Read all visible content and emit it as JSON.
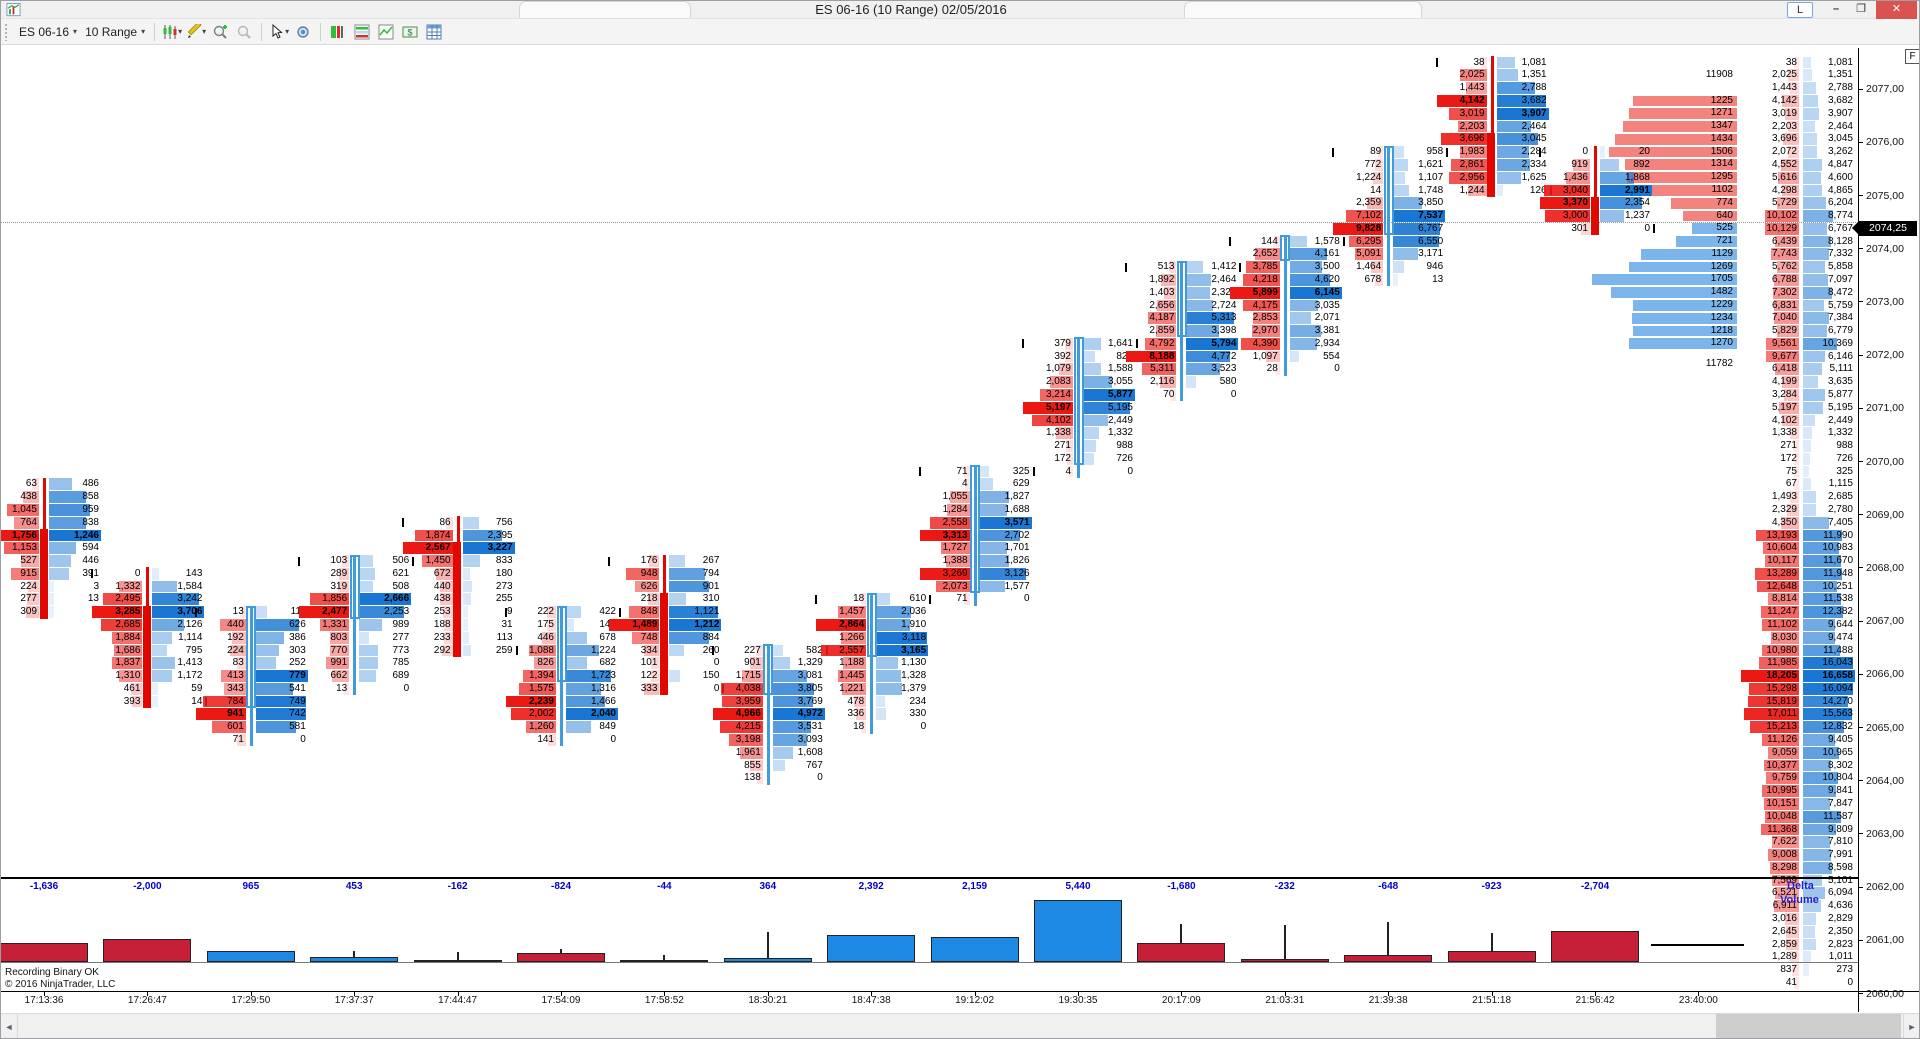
{
  "window": {
    "title": "ES 06-16 (10 Range)  02/05/2016",
    "link_button": "L",
    "minimize": "–",
    "restore": "❐",
    "close": "✕",
    "f_button": "F",
    "status_line1": "Recording Binary OK",
    "status_line2": "© 2016 NinjaTrader, LLC"
  },
  "toolbar": {
    "instrument": "ES 06-16",
    "period": "10 Range",
    "caret": "▾",
    "icons": [
      "chart-style",
      "drawing-tools",
      "zoom-in",
      "zoom-out",
      "cursor",
      "data-box",
      "chart-trader",
      "market-analyzer",
      "mini-chart",
      "account-dollar",
      "data-grid"
    ]
  },
  "scrollbar": {
    "left_arrow": "◄",
    "right_arrow": "►"
  },
  "colors": {
    "bid_heat": "235,25,20",
    "ask_heat": "25,118,210",
    "candle_up": "#3e9bdc",
    "candle_down": "#e00800",
    "vp_sell": "#f2837f",
    "vp_buy": "#7cb5ec",
    "vol_up": "#1e88e5",
    "vol_down": "#c62039",
    "delta_text": "#0000cc",
    "badge_bg": "#000000",
    "badge_text": "#ffffff"
  },
  "chart_data": {
    "type": "footprint",
    "title": "ES 06-16 (10 Range) 02/05/2016",
    "price_axis": {
      "labels": [
        "2077,00",
        "2076,00",
        "2075,00",
        "2074,00",
        "2073,00",
        "2072,00",
        "2071,00",
        "2070,00",
        "2069,00",
        "2068,00",
        "2067,00",
        "2066,00",
        "2065,00",
        "2064,00",
        "2063,00",
        "2062,00",
        "2061,00",
        "2060,00"
      ],
      "last_price": "2074,25",
      "tick_size": 0.25,
      "top_row_price": 2077.5
    },
    "time_axis": [
      "17:13:36",
      "17:26:47",
      "17:29:50",
      "17:37:37",
      "17:44:47",
      "17:54:09",
      "17:58:52",
      "18:30:21",
      "18:47:38",
      "19:12:02",
      "19:30:35",
      "20:17:09",
      "21:03:31",
      "21:39:38",
      "21:51:18",
      "21:56:42",
      "23:40:00"
    ],
    "panel_labels": {
      "delta": "Delta",
      "volume": "Volume"
    },
    "bars": [
      {
        "time": "17:13:36",
        "direction": "down",
        "start_tick": 33,
        "body": [
          4,
          10
        ],
        "delta": "-1,636",
        "volume": 13306,
        "bid": [
          "63",
          "438",
          "1,045",
          "764",
          "1,756",
          "1,153",
          "527",
          "915",
          "224",
          "277",
          "309"
        ],
        "ask": [
          "486",
          "858",
          "959",
          "838",
          "1,246",
          "594",
          "446",
          "391",
          "3",
          "13",
          "1"
        ]
      },
      {
        "time": "17:26:47",
        "direction": "down",
        "start_tick": 40,
        "body": [
          3,
          10
        ],
        "delta": "-2,000",
        "volume": 32736,
        "bid": [
          "0",
          "1,332",
          "2,495",
          "3,285",
          "2,685",
          "1,884",
          "1,686",
          "1,837",
          "1,310",
          "461",
          "393"
        ],
        "ask": [
          "143",
          "1,584",
          "3,242",
          "3,706",
          "2,126",
          "1,114",
          "795",
          "1,413",
          "1,172",
          "59",
          "14"
        ]
      },
      {
        "time": "17:29:50",
        "direction": "up",
        "start_tick": 43,
        "body": [
          0,
          7
        ],
        "delta": "965",
        "volume": 9175,
        "bid": [
          "13",
          "440",
          "192",
          "224",
          "83",
          "413",
          "343",
          "784",
          "941",
          "601",
          "71"
        ],
        "ask": [
          "111",
          "626",
          "386",
          "303",
          "252",
          "779",
          "541",
          "749",
          "742",
          "581",
          "0"
        ]
      },
      {
        "time": "17:37:37",
        "direction": "up",
        "start_tick": 39,
        "body": [
          0,
          4
        ],
        "delta": "453",
        "volume": 19681,
        "bid": [
          "103",
          "289",
          "319",
          "1,856",
          "2,477",
          "1,331",
          "803",
          "770",
          "991",
          "662",
          "13"
        ],
        "ask": [
          "506",
          "621",
          "508",
          "2,666",
          "2,253",
          "989",
          "277",
          "773",
          "785",
          "689",
          "0"
        ]
      },
      {
        "time": "17:44:47",
        "direction": "down",
        "start_tick": 36,
        "body": [
          2,
          10
        ],
        "delta": "-162",
        "volume": 16824,
        "bid": [
          "86",
          "1,874",
          "2,567",
          "1,450",
          "672",
          "440",
          "438",
          "253",
          "188",
          "233",
          "292"
        ],
        "ask": [
          "756",
          "2,395",
          "3,227",
          "833",
          "180",
          "273",
          "255",
          "9",
          "31",
          "113",
          "259"
        ]
      },
      {
        "time": "17:54:09",
        "direction": "up",
        "start_tick": 43,
        "body": [
          0,
          5
        ],
        "delta": "-824",
        "volume": 21912,
        "bid": [
          "222",
          "175",
          "446",
          "1,088",
          "826",
          "1,394",
          "1,575",
          "2,239",
          "2,002",
          "1,260",
          "141"
        ],
        "ask": [
          "422",
          "144",
          "678",
          "1,224",
          "682",
          "1,723",
          "1,316",
          "1,466",
          "2,040",
          "849",
          "0"
        ]
      },
      {
        "time": "17:58:52",
        "direction": "down",
        "start_tick": 39,
        "body": [
          3,
          10
        ],
        "delta": "-44",
        "volume": 11842,
        "bid": [
          "176",
          "948",
          "626",
          "218",
          "848",
          "1,489",
          "748",
          "334",
          "101",
          "122",
          "333"
        ],
        "ask": [
          "267",
          "794",
          "901",
          "310",
          "1,121",
          "1,212",
          "884",
          "260",
          "0",
          "150",
          "0"
        ]
      },
      {
        "time": "18:30:21",
        "direction": "up",
        "start_tick": 46,
        "body": [
          0,
          3
        ],
        "delta": "364",
        "volume": 52710,
        "bid": [
          "227",
          "901",
          "1,715",
          "4,038",
          "3,959",
          "4,966",
          "4,215",
          "3,198",
          "1,961",
          "855",
          "138"
        ],
        "ask": [
          "582",
          "1,329",
          "3,081",
          "3,805",
          "3,769",
          "4,972",
          "3,531",
          "3,093",
          "1,608",
          "767",
          "0"
        ]
      },
      {
        "time": "18:47:38",
        "direction": "up",
        "start_tick": 42,
        "body": [
          0,
          4
        ],
        "delta": "2,392",
        "volume": 28088,
        "bid": [
          "18",
          "1,457",
          "2,864",
          "1,266",
          "2,557",
          "1,188",
          "1,445",
          "1,221",
          "478",
          "336",
          "18"
        ],
        "ask": [
          "610",
          "2,036",
          "1,910",
          "3,118",
          "3,165",
          "1,130",
          "1,328",
          "1,379",
          "234",
          "330",
          "0"
        ]
      },
      {
        "time": "19:12:02",
        "direction": "up",
        "start_tick": 32,
        "body": [
          0,
          9
        ],
        "delta": "2,159",
        "volume": 35785,
        "bid": [
          "71",
          "4",
          "1,055",
          "1,284",
          "2,558",
          "3,313",
          "1,727",
          "1,388",
          "3,269",
          "2,073",
          "71"
        ],
        "ask": [
          "325",
          "629",
          "1,827",
          "1,688",
          "3,571",
          "2,702",
          "1,701",
          "1,826",
          "3,126",
          "1,577",
          "0"
        ]
      },
      {
        "time": "19:30:35",
        "direction": "up",
        "start_tick": 22,
        "body": [
          0,
          9
        ],
        "delta": "5,440",
        "volume": 41902,
        "bid": [
          "379",
          "392",
          "1,079",
          "2,083",
          "3,214",
          "5,197",
          "4,102",
          "1,338",
          "271",
          "172",
          "4"
        ],
        "ask": [
          "1,641",
          "820",
          "1,588",
          "3,055",
          "5,877",
          "5,195",
          "2,449",
          "1,332",
          "988",
          "726",
          "0"
        ]
      },
      {
        "time": "20:17:09",
        "direction": "up",
        "start_tick": 16,
        "body": [
          0,
          5
        ],
        "delta": "-1,680",
        "volume": 66294,
        "bid": [
          "513",
          "1,892",
          "1,403",
          "2,656",
          "4,187",
          "2,859",
          "4,792",
          "8,188",
          "5,311",
          "2,116",
          "70"
        ],
        "ask": [
          "1,412",
          "2,464",
          "2,327",
          "2,724",
          "5,313",
          "3,398",
          "5,794",
          "4,772",
          "3,523",
          "580",
          "0"
        ]
      },
      {
        "time": "21:03:31",
        "direction": "up",
        "start_tick": 14,
        "body": [
          0,
          1
        ],
        "delta": "-232",
        "volume": 64190,
        "bid": [
          "144",
          "2,652",
          "3,785",
          "4,218",
          "5,899",
          "4,175",
          "2,853",
          "2,970",
          "4,390",
          "1,097",
          "28"
        ],
        "ask": [
          "1,578",
          "4,161",
          "3,500",
          "4,620",
          "6,145",
          "3,035",
          "2,071",
          "3,381",
          "2,934",
          "554",
          "0"
        ]
      },
      {
        "time": "21:39:38",
        "direction": "up",
        "start_tick": 7,
        "body": [
          0,
          6
        ],
        "delta": "-648",
        "volume": 69184,
        "bid": [
          "89",
          "772",
          "1,224",
          "14",
          "2,359",
          "7,102",
          "9,828",
          "6,295",
          "5,091",
          "1,464",
          "678"
        ],
        "ask": [
          "958",
          "1,621",
          "1,107",
          "1,748",
          "3,850",
          "7,537",
          "6,767",
          "6,550",
          "3,171",
          "946",
          "13"
        ]
      },
      {
        "time": "21:51:18",
        "direction": "down",
        "start_tick": 0,
        "body": [
          6,
          10
        ],
        "delta": "-923",
        "volume": 50297,
        "bid": [
          "38",
          "2,025",
          "1,443",
          "4,142",
          "3,019",
          "2,203",
          "3,696",
          "1,983",
          "2,861",
          "2,956",
          "1,244"
        ],
        "ask": [
          "1,081",
          "1,351",
          "2,788",
          "3,682",
          "3,907",
          "2,464",
          "3,045",
          "2,284",
          "2,334",
          "1,625",
          "126"
        ]
      },
      {
        "time": "21:56:42",
        "direction": "down",
        "start_tick": 7,
        "body": [
          4,
          6
        ],
        "delta": "-2,704",
        "volume": 21428,
        "bid": [
          "0",
          "919",
          "1,436",
          "3,040",
          "3,370",
          "3,000",
          "301"
        ],
        "ask": [
          "20",
          "892",
          "1,868",
          "2,991",
          "2,354",
          "1,237",
          "0"
        ]
      }
    ],
    "volume_profile": {
      "above_total": "11908",
      "below_total": "11782",
      "sell_start_tick": 3,
      "sell_values": [
        1225,
        1271,
        1347,
        1434,
        1506,
        1314,
        1295,
        1102,
        774,
        640
      ],
      "buy_start_tick": 13,
      "buy_values": [
        525,
        721,
        1129,
        1269,
        1705,
        1482,
        1229,
        1234,
        1218,
        1270
      ]
    },
    "totals": {
      "bid": [
        "38",
        "2,025",
        "1,443",
        "4,142",
        "3,019",
        "2,203",
        "3,696",
        "2,072",
        "4,552",
        "5,616",
        "4,298",
        "5,729",
        "10,102",
        "10,129",
        "6,439",
        "7,743",
        "5,762",
        "6,788",
        "7,302",
        "6,831",
        "7,040",
        "5,829",
        "9,561",
        "9,677",
        "6,418",
        "4,199",
        "3,284",
        "5,197",
        "4,102",
        "1,338",
        "271",
        "172",
        "75",
        "67",
        "1,493",
        "2,329",
        "4,350",
        "13,193",
        "10,604",
        "10,117",
        "13,289",
        "12,648",
        "8,814",
        "11,247",
        "11,102",
        "8,030",
        "10,980",
        "11,985",
        "18,205",
        "15,298",
        "15,819",
        "17,011",
        "15,213",
        "11,126",
        "9,059",
        "10,377",
        "9,759",
        "10,995",
        "10,151",
        "10,048",
        "11,368",
        "7,622",
        "9,008",
        "8,298",
        "7,569",
        "6,521",
        "6,911",
        "3,016",
        "2,645",
        "2,859",
        "1,289",
        "837",
        "41"
      ],
      "ask": [
        "1,081",
        "1,351",
        "2,788",
        "3,682",
        "3,907",
        "2,464",
        "3,045",
        "3,262",
        "4,847",
        "4,600",
        "4,865",
        "6,204",
        "8,774",
        "6,767",
        "8,128",
        "7,332",
        "5,858",
        "7,097",
        "8,472",
        "5,759",
        "7,384",
        "6,779",
        "10,369",
        "6,146",
        "5,111",
        "3,635",
        "5,877",
        "5,195",
        "2,449",
        "1,332",
        "988",
        "726",
        "325",
        "1,115",
        "2,685",
        "2,780",
        "7,405",
        "11,990",
        "10,983",
        "11,670",
        "11,948",
        "10,251",
        "11,538",
        "12,382",
        "9,644",
        "9,474",
        "11,488",
        "16,043",
        "16,658",
        "16,094",
        "14,270",
        "15,563",
        "12,832",
        "9,405",
        "10,965",
        "8,302",
        "10,804",
        "9,841",
        "7,847",
        "11,587",
        "9,809",
        "7,810",
        "7,991",
        "8,598",
        "5,101",
        "6,094",
        "4,636",
        "2,829",
        "2,350",
        "2,823",
        "1,011",
        "273",
        "0"
      ]
    }
  }
}
